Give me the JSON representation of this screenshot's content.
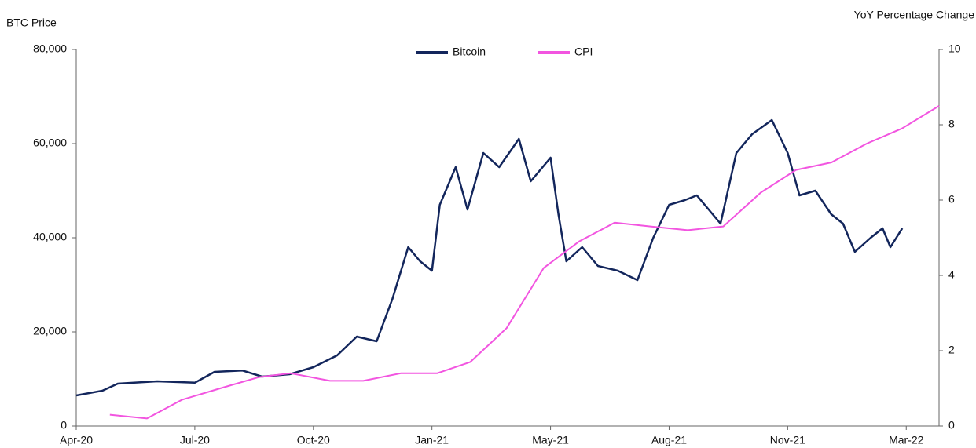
{
  "chart_data": {
    "type": "line",
    "y_label": "BTC Price",
    "y2_label": "YoY Percentage Change",
    "xlim": [
      0,
      21.83
    ],
    "xticks": [
      {
        "value": 0,
        "label": "Apr-20"
      },
      {
        "value": 3,
        "label": "Jul-20"
      },
      {
        "value": 6,
        "label": "Oct-20"
      },
      {
        "value": 9,
        "label": "Jan-21"
      },
      {
        "value": 12,
        "label": "May-21"
      },
      {
        "value": 15,
        "label": "Aug-21"
      },
      {
        "value": 18,
        "label": "Nov-21"
      },
      {
        "value": 21,
        "label": "Mar-22"
      }
    ],
    "ylim": [
      0,
      80000
    ],
    "yticks": [
      0,
      {
        "value": 20000,
        "label": "20,000"
      },
      {
        "value": 40000,
        "label": "40,000"
      },
      {
        "value": 60000,
        "label": "60,000"
      },
      {
        "value": 80000,
        "label": "80,000"
      }
    ],
    "y2lim": [
      0,
      10
    ],
    "y2ticks": [
      0,
      2,
      4,
      6,
      8,
      10
    ],
    "legend": "top",
    "series": [
      {
        "name": "Bitcoin",
        "color": "#13265c",
        "x": [
          0,
          0.66,
          1.05,
          2.05,
          3,
          3.5,
          4.2,
          4.7,
          5.4,
          6,
          6.6,
          7.1,
          7.6,
          8,
          8.4,
          8.7,
          9,
          9.2,
          9.6,
          9.9,
          10.3,
          10.7,
          11.2,
          11.5,
          12,
          12.2,
          12.4,
          12.8,
          13.2,
          13.7,
          14.2,
          14.6,
          15,
          15.4,
          15.7,
          16,
          16.3,
          16.7,
          17.1,
          17.6,
          18,
          18.3,
          18.7,
          19.1,
          19.4,
          19.7,
          20.1,
          20.4,
          20.6,
          20.9
        ],
        "values": [
          6500,
          7500,
          9000,
          9500,
          9200,
          11500,
          11800,
          10500,
          11000,
          12500,
          15000,
          19000,
          18000,
          27000,
          38000,
          35000,
          33000,
          47000,
          55000,
          46000,
          58000,
          55000,
          61000,
          52000,
          57000,
          45000,
          35000,
          38000,
          34000,
          33000,
          31000,
          40000,
          47000,
          48000,
          49000,
          46000,
          43000,
          58000,
          62000,
          65000,
          58000,
          49000,
          50000,
          45000,
          43000,
          37000,
          40000,
          42000,
          38000,
          42000
        ]
      },
      {
        "name": "CPI",
        "color": "#f255e0",
        "axis": "y2",
        "x": [
          0.85,
          1.79,
          2.68,
          3.64,
          4.63,
          5.43,
          6.42,
          7.26,
          8.21,
          9.13,
          9.97,
          10.89,
          11.83,
          12.72,
          13.62,
          14.53,
          15.47,
          16.37,
          17.32,
          18.21,
          19.11,
          20.0,
          20.89,
          21.83
        ],
        "values": [
          0.3,
          0.2,
          0.7,
          1.0,
          1.3,
          1.4,
          1.2,
          1.2,
          1.4,
          1.4,
          1.7,
          2.6,
          4.2,
          4.9,
          5.4,
          5.3,
          5.2,
          5.3,
          6.2,
          6.8,
          7.0,
          7.5,
          7.9,
          8.5
        ]
      }
    ]
  }
}
